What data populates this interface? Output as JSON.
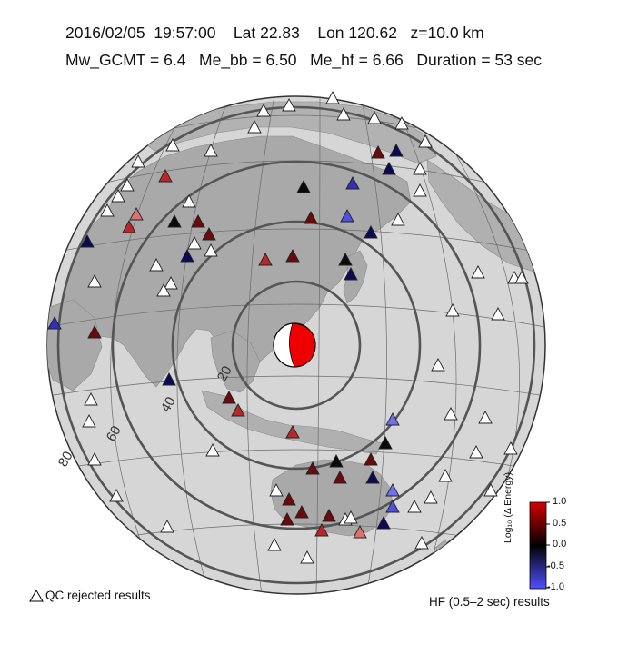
{
  "header": {
    "date": "2016/02/05",
    "time": "19:57:00",
    "lat": "Lat 22.83",
    "lon": "Lon 120.62",
    "depth": "z=10.0 km",
    "mw": "Mw_GCMT = 6.4",
    "me_bb": "Me_bb = 6.50",
    "me_hf": "Me_hf = 6.66",
    "duration": "Duration = 53 sec"
  },
  "map": {
    "ring_labels": [
      "20",
      "40",
      "60",
      "80"
    ],
    "beachball_colors": {
      "compression": "#ee0000",
      "dilatation": "#ffffff"
    }
  },
  "legend": {
    "qc_label": "QC rejected results",
    "hf_label": "HF (0.5–2 sec) results",
    "colorbar_title": "Log₁₀ (Δ Energy)",
    "colorbar_ticks": [
      "1.0",
      "0.5",
      "0.0",
      "-0.5",
      "-1.0"
    ],
    "colorbar_colors": {
      "high": "#d60000",
      "mid": "#000000",
      "low": "#5050ff"
    }
  }
}
